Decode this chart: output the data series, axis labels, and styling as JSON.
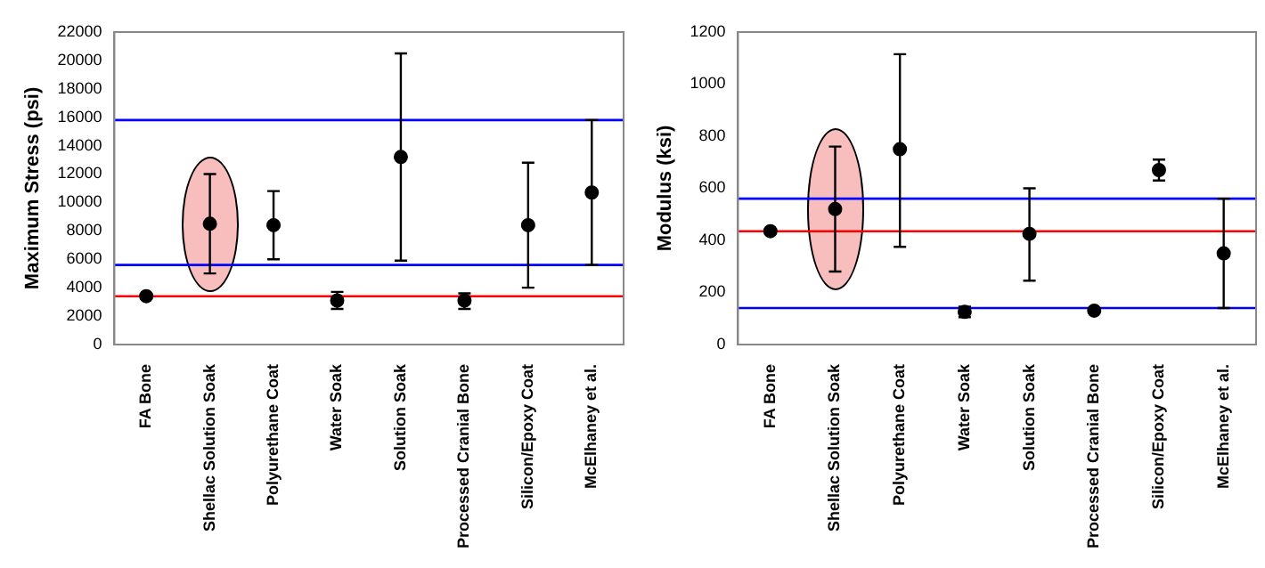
{
  "chart_data": [
    {
      "type": "scatter",
      "ylabel": "Maximum Stress (psi)",
      "categories": [
        "FA Bone",
        "Shellac Solution Soak",
        "Polyurethane Coat",
        "Water Soak",
        "Solution Soak",
        "Processed Cranial Bone",
        "Silicon/Epoxy Coat",
        "McElhaney et al."
      ],
      "marker": "circle",
      "series": [
        {
          "color": "#000000",
          "values": [
            3400,
            8500,
            8400,
            3100,
            13200,
            3100,
            8400,
            10700
          ],
          "errors": [
            null,
            [
              5000,
              12000
            ],
            [
              6000,
              10800
            ],
            [
              2500,
              3700
            ],
            [
              5900,
              20500
            ],
            [
              2500,
              3600
            ],
            [
              4000,
              12800
            ],
            [
              5600,
              15800
            ]
          ]
        }
      ],
      "ylim": [
        0,
        22000
      ],
      "yticks": [
        0,
        2000,
        4000,
        6000,
        8000,
        10000,
        12000,
        14000,
        16000,
        18000,
        20000,
        22000
      ],
      "ref_lines": [
        {
          "axis": "y",
          "value": 15800,
          "color": "#0000ff"
        },
        {
          "axis": "y",
          "value": 5600,
          "color": "#0000ff"
        },
        {
          "axis": "y",
          "value": 3400,
          "color": "#ff0000"
        }
      ]
    },
    {
      "type": "scatter",
      "ylabel": "Modulus (ksi)",
      "categories": [
        "FA Bone",
        "Shellac Solution Soak",
        "Polyurethane Coat",
        "Water Soak",
        "Solution Soak",
        "Processed Cranial Bone",
        "Silicon/Epoxy Coat",
        "McElhaney et al."
      ],
      "marker": "circle",
      "series": [
        {
          "color": "#000000",
          "values": [
            435,
            520,
            750,
            125,
            425,
            130,
            670,
            350
          ],
          "errors": [
            null,
            [
              280,
              760
            ],
            [
              375,
              1115
            ],
            [
              105,
              145
            ],
            [
              245,
              600
            ],
            null,
            [
              630,
              710
            ],
            [
              140,
              560
            ]
          ]
        }
      ],
      "ylim": [
        0,
        1200
      ],
      "yticks": [
        0,
        200,
        400,
        600,
        800,
        1000,
        1200
      ],
      "ref_lines": [
        {
          "axis": "y",
          "value": 560,
          "color": "#0000ff"
        },
        {
          "axis": "y",
          "value": 140,
          "color": "#0000ff"
        },
        {
          "axis": "y",
          "value": 435,
          "color": "#ff0000"
        }
      ]
    }
  ]
}
